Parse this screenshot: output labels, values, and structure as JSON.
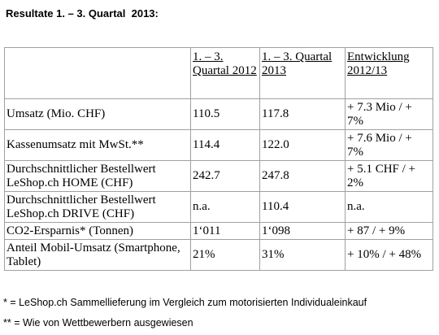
{
  "header": {
    "title": "Resultate 1. – 3. Quartal  2013:"
  },
  "table": {
    "columns": [
      "1. – 3. Quartal 2012",
      "1. – 3. Quartal 2013",
      "Entwicklung 2012/13"
    ],
    "rows": [
      [
        "Umsatz (Mio. CHF)",
        "110.5",
        "117.8",
        "+ 7.3 Mio / + 7%"
      ],
      [
        "Kassenumsatz mit MwSt.**",
        "114.4",
        "122.0",
        "+ 7.6 Mio / + 7%"
      ],
      [
        "Durchschnittlicher Bestellwert LeShop.ch HOME (CHF)",
        "242.7",
        "247.8",
        "+ 5.1 CHF / + 2%"
      ],
      [
        "Durchschnittlicher Bestellwert LeShop.ch DRIVE (CHF)",
        "n.a.",
        "110.4",
        "n.a."
      ],
      [
        "CO2-Ersparnis* (Tonnen)",
        "1‘011",
        "1‘098",
        "+ 87 / + 9%"
      ],
      [
        "Anteil Mobil-Umsatz (Smartphone, Tablet)",
        "21%",
        "31%",
        "+ 10% / + 48%"
      ]
    ]
  },
  "footnotes": [
    "* = LeShop.ch Sammellieferung im Vergleich zum motorisierten Individualeinkauf",
    "** = Wie von Wettbewerbern ausgewiesen"
  ]
}
